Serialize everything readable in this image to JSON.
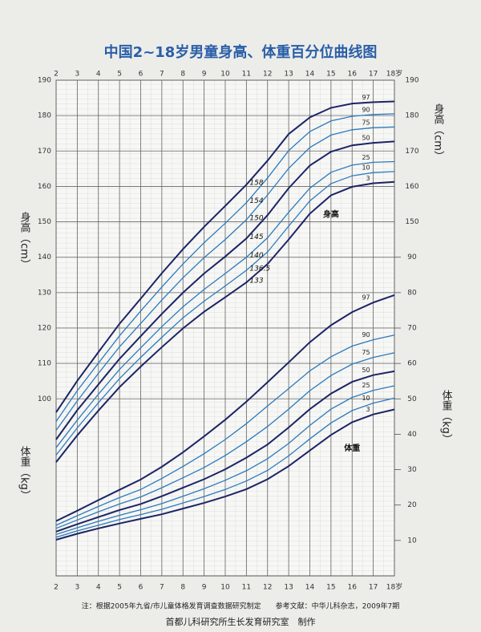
{
  "chart_data": {
    "type": "line",
    "title": "中国2~18岁男童身高、体重百分位曲线图",
    "x": [
      2,
      3,
      4,
      5,
      6,
      7,
      8,
      9,
      10,
      11,
      12,
      13,
      14,
      15,
      16,
      17,
      18
    ],
    "xlim": [
      2,
      18
    ],
    "xticks": [
      2,
      3,
      4,
      5,
      6,
      7,
      8,
      9,
      10,
      11,
      12,
      13,
      14,
      15,
      16,
      17,
      {
        "value": 18,
        "label": "18岁"
      }
    ],
    "ylim": [
      50,
      190
    ],
    "yticks": [
      100,
      110,
      120,
      130,
      140,
      150,
      160,
      170,
      180,
      190
    ],
    "y2lim": [
      0,
      140
    ],
    "y2ticks": [
      10,
      20,
      30,
      40,
      50,
      60,
      70,
      80,
      90
    ],
    "ylabel": "身高（cm）",
    "y2label": "体重（kg）",
    "grid": true,
    "series": [
      {
        "name": "97",
        "color": "#1c2466",
        "values": [
          96.2,
          105.1,
          113.2,
          121.2,
          128.3,
          135.5,
          142.3,
          148.6,
          154.5,
          160.5,
          167.3,
          174.8,
          179.5,
          182.2,
          183.4,
          183.8,
          184.0
        ]
      },
      {
        "name": "90",
        "color": "#2a7bbd",
        "values": [
          93.6,
          102.3,
          110.1,
          117.8,
          124.8,
          131.6,
          138.1,
          144.1,
          149.6,
          155.4,
          162.4,
          170.1,
          175.5,
          178.5,
          179.8,
          180.3,
          180.5
        ]
      },
      {
        "name": "75",
        "color": "#2a7bbd",
        "values": [
          91.1,
          99.4,
          107.2,
          114.7,
          121.3,
          127.9,
          134.2,
          139.9,
          145.0,
          150.6,
          157.6,
          165.1,
          171.0,
          174.5,
          176.0,
          176.6,
          176.8
        ]
      },
      {
        "name": "50",
        "color": "#1c2466",
        "values": [
          88.5,
          96.8,
          104.1,
          111.3,
          117.7,
          124.0,
          130.0,
          135.4,
          140.2,
          145.3,
          151.9,
          159.5,
          165.9,
          169.8,
          171.6,
          172.3,
          172.7
        ]
      },
      {
        "name": "25",
        "color": "#2a7bbd",
        "values": [
          86.2,
          94.0,
          101.3,
          108.3,
          114.4,
          120.4,
          126.0,
          130.9,
          135.4,
          140.0,
          145.5,
          152.7,
          159.5,
          164.0,
          166.0,
          166.8,
          167.0
        ]
      },
      {
        "name": "10",
        "color": "#2a7bbd",
        "values": [
          84.1,
          91.8,
          98.9,
          105.7,
          111.7,
          117.4,
          122.9,
          127.6,
          131.9,
          136.3,
          141.5,
          148.8,
          155.9,
          160.8,
          163.0,
          163.9,
          164.2
        ]
      },
      {
        "name": "3",
        "color": "#1c2466",
        "values": [
          82.1,
          89.7,
          96.7,
          103.3,
          109.1,
          114.6,
          119.9,
          124.6,
          128.7,
          132.9,
          138.1,
          145.0,
          152.3,
          157.5,
          159.9,
          160.9,
          161.3
        ]
      },
      {
        "name": "97",
        "color": "#1c2466",
        "axis": "y2",
        "values": [
          15.5,
          18.4,
          21.4,
          24.3,
          27.2,
          30.8,
          34.9,
          39.4,
          44.1,
          49.2,
          54.7,
          60.3,
          66.0,
          70.8,
          74.5,
          77.2,
          79.3
        ]
      },
      {
        "name": "90",
        "color": "#2a7bbd",
        "axis": "y2",
        "values": [
          14.3,
          17.0,
          19.6,
          22.1,
          24.4,
          27.5,
          30.9,
          34.5,
          38.5,
          43.0,
          48.0,
          52.9,
          57.9,
          61.9,
          64.9,
          66.7,
          68.0
        ]
      },
      {
        "name": "75",
        "color": "#2a7bbd",
        "axis": "y2",
        "values": [
          13.4,
          15.8,
          18.1,
          20.3,
          22.3,
          24.9,
          27.7,
          30.6,
          34.0,
          37.9,
          42.2,
          47.1,
          52.3,
          56.6,
          59.8,
          61.7,
          63.0
        ]
      },
      {
        "name": "50",
        "color": "#1c2466",
        "axis": "y2",
        "values": [
          12.5,
          14.6,
          16.6,
          18.6,
          20.3,
          22.5,
          24.9,
          27.3,
          30.1,
          33.4,
          37.1,
          41.9,
          47.1,
          51.5,
          54.8,
          56.7,
          57.8
        ]
      },
      {
        "name": "25",
        "color": "#2a7bbd",
        "axis": "y2",
        "values": [
          11.7,
          13.6,
          15.4,
          17.1,
          18.7,
          20.4,
          22.5,
          24.6,
          27.0,
          29.7,
          33.1,
          37.4,
          42.5,
          47.1,
          50.4,
          52.4,
          53.7
        ]
      },
      {
        "name": "10",
        "color": "#2a7bbd",
        "axis": "y2",
        "values": [
          10.9,
          12.7,
          14.3,
          15.9,
          17.3,
          18.8,
          20.6,
          22.4,
          24.4,
          26.8,
          29.8,
          33.9,
          38.7,
          43.2,
          46.7,
          48.8,
          50.2
        ]
      },
      {
        "name": "3",
        "color": "#1c2466",
        "axis": "y2",
        "values": [
          10.2,
          11.9,
          13.4,
          14.8,
          16.1,
          17.4,
          19.0,
          20.6,
          22.4,
          24.5,
          27.3,
          31.0,
          35.4,
          39.8,
          43.4,
          45.6,
          47.0
        ]
      }
    ],
    "height_label": "身高",
    "weight_label": "体重",
    "annotations": [
      "158",
      "154",
      "150",
      "145",
      "140",
      "136.5",
      "133"
    ],
    "note": "注：根据2005年九省/市儿童体格发育调查数据研究制定　　参考文献：中华儿科杂志，2009年7期",
    "footer": "首都儿科研究所生长发育研究室　制作"
  }
}
